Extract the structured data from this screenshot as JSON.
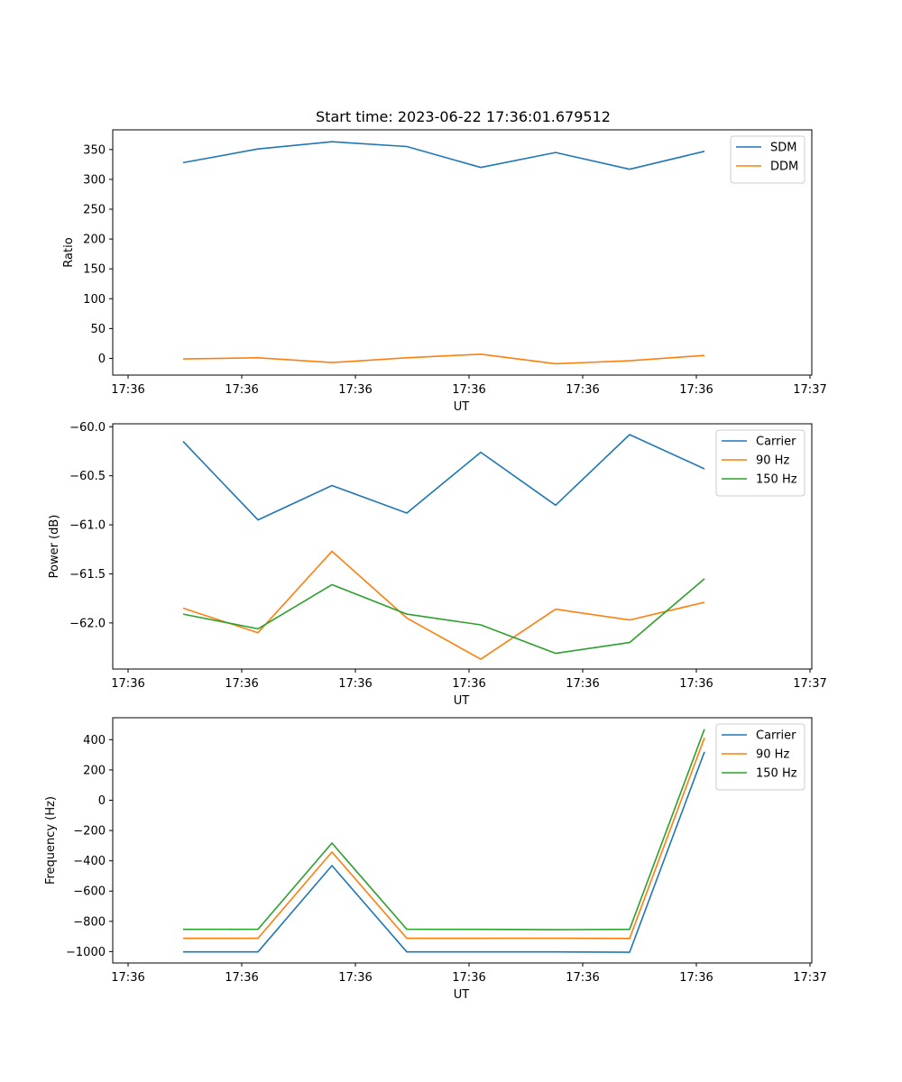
{
  "chart_data": [
    {
      "type": "line",
      "title": "Start time: 2023-06-22 17:36:01.679512",
      "xlabel": "UT",
      "ylabel": "Ratio",
      "x_tick_labels": [
        "17:36",
        "17:36",
        "17:36",
        "17:36",
        "17:36",
        "17:36",
        "17:36",
        "17:37"
      ],
      "y_ticks": [
        0,
        50,
        100,
        150,
        200,
        250,
        300,
        350
      ],
      "ylim": [
        -28,
        383
      ],
      "legend_position": "top-right",
      "grid": false,
      "x": [
        1,
        2,
        3,
        4,
        5,
        6,
        7,
        8
      ],
      "series": [
        {
          "name": "SDM",
          "color": "#1f77b4",
          "values": [
            328,
            351,
            363,
            355,
            320,
            345,
            317,
            347
          ]
        },
        {
          "name": "DDM",
          "color": "#ff7f0e",
          "values": [
            -1,
            1,
            -7,
            1,
            7,
            -9,
            -4,
            5
          ]
        }
      ]
    },
    {
      "type": "line",
      "title": "",
      "xlabel": "UT",
      "ylabel": "Power (dB)",
      "x_tick_labels": [
        "17:36",
        "17:36",
        "17:36",
        "17:36",
        "17:36",
        "17:36",
        "17:36",
        "17:37"
      ],
      "y_ticks": [
        -62.0,
        -61.5,
        -61.0,
        -60.5,
        -60.0
      ],
      "y_tick_labels": [
        "−62.0",
        "−61.5",
        "−61.0",
        "−60.5",
        "−60.0"
      ],
      "ylim": [
        -62.47,
        -59.97
      ],
      "legend_position": "top-right",
      "grid": false,
      "x": [
        1,
        2,
        3,
        4,
        5,
        6,
        7,
        8
      ],
      "series": [
        {
          "name": "Carrier",
          "color": "#1f77b4",
          "values": [
            -60.15,
            -60.95,
            -60.6,
            -60.88,
            -60.26,
            -60.8,
            -60.08,
            -60.43
          ]
        },
        {
          "name": "90 Hz",
          "color": "#ff7f0e",
          "values": [
            -61.85,
            -62.1,
            -61.27,
            -61.95,
            -62.37,
            -61.86,
            -61.97,
            -61.79
          ]
        },
        {
          "name": "150 Hz",
          "color": "#2ca02c",
          "values": [
            -61.91,
            -62.06,
            -61.61,
            -61.91,
            -62.02,
            -62.31,
            -62.2,
            -61.55
          ]
        }
      ]
    },
    {
      "type": "line",
      "title": "",
      "xlabel": "UT",
      "ylabel": "Frequency (Hz)",
      "x_tick_labels": [
        "17:36",
        "17:36",
        "17:36",
        "17:36",
        "17:36",
        "17:36",
        "17:36",
        "17:37"
      ],
      "y_ticks": [
        -1000,
        -800,
        -600,
        -400,
        -200,
        0,
        200,
        400
      ],
      "y_tick_labels": [
        "−1000",
        "−800",
        "−600",
        "−400",
        "−200",
        "0",
        "200",
        "400"
      ],
      "ylim": [
        -1075,
        545
      ],
      "legend_position": "top-right",
      "grid": false,
      "x": [
        1,
        2,
        3,
        4,
        5,
        6,
        7,
        8
      ],
      "series": [
        {
          "name": "Carrier",
          "color": "#1f77b4",
          "values": [
            -1002,
            -1002,
            -432,
            -1002,
            -1002,
            -1002,
            -1004,
            320
          ]
        },
        {
          "name": "90 Hz",
          "color": "#ff7f0e",
          "values": [
            -912,
            -912,
            -342,
            -912,
            -912,
            -911,
            -913,
            412
          ]
        },
        {
          "name": "150 Hz",
          "color": "#2ca02c",
          "values": [
            -853,
            -852,
            -283,
            -852,
            -853,
            -855,
            -853,
            470
          ]
        }
      ]
    }
  ]
}
